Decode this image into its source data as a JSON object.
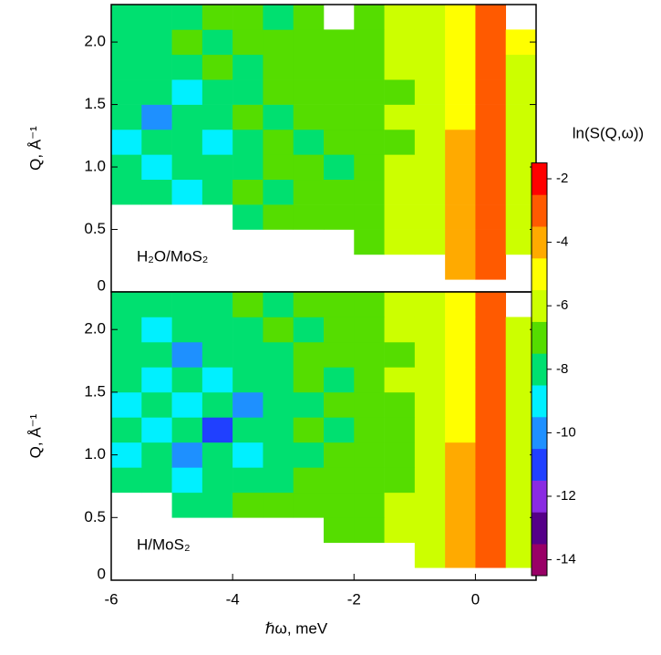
{
  "chart_data": [
    {
      "type": "heatmap",
      "annotation": "H₂O/MoS₂",
      "ylabel": "Q, Å⁻¹",
      "xlim": [
        -6,
        1
      ],
      "ylim": [
        0,
        2.3
      ],
      "yticks": [
        0,
        0.5,
        {
          "value": 1,
          "label": "1.0"
        },
        1.5,
        {
          "value": 2,
          "label": "2.0"
        }
      ],
      "x_edges": [
        -6,
        -5.5,
        -5,
        -4.5,
        -4,
        -3.5,
        -3,
        -2.5,
        -2,
        -1.5,
        -1,
        -0.5,
        0,
        0.5,
        1
      ],
      "y_edges": [
        0.1,
        0.3,
        0.5,
        0.7,
        0.9,
        1.1,
        1.3,
        1.5,
        1.7,
        1.9,
        2.1,
        2.3
      ],
      "z": [
        [
          null,
          null,
          null,
          null,
          null,
          null,
          null,
          null,
          null,
          null,
          null,
          -4,
          -3,
          null
        ],
        [
          null,
          null,
          null,
          null,
          null,
          null,
          null,
          null,
          -7,
          -6,
          -6,
          -4,
          -3,
          -6
        ],
        [
          null,
          null,
          null,
          null,
          -8,
          -7,
          -7,
          -7,
          -7,
          -6,
          -6,
          -4,
          -3,
          -6
        ],
        [
          -8,
          -8,
          -9,
          -8,
          -7,
          -8,
          -7,
          -7,
          -7,
          -6,
          -6,
          -4,
          -3,
          -6
        ],
        [
          -8,
          -9,
          -8,
          -8,
          -8,
          -7,
          -7,
          -8,
          -7,
          -6,
          -6,
          -4,
          -3,
          -6
        ],
        [
          -9,
          -8,
          -8,
          -9,
          -8,
          -7,
          -8,
          -7,
          -7,
          -7,
          -6,
          -4,
          -3,
          -6
        ],
        [
          -8,
          -10,
          -8,
          -8,
          -7,
          -8,
          -7,
          -7,
          -7,
          -6,
          -6,
          -5,
          -3,
          -6
        ],
        [
          -8,
          -8,
          -9,
          -8,
          -8,
          -7,
          -7,
          -7,
          -7,
          -7,
          -6,
          -5,
          -3,
          -6
        ],
        [
          -8,
          -8,
          -8,
          -7,
          -8,
          -7,
          -7,
          -7,
          -7,
          -6,
          -6,
          -5,
          -3,
          -6
        ],
        [
          -8,
          -8,
          -7,
          -8,
          -7,
          -7,
          -7,
          -7,
          -7,
          -6,
          -6,
          -5,
          -3,
          -5
        ],
        [
          -8,
          -8,
          -8,
          -7,
          -7,
          -8,
          -7,
          null,
          -7,
          -6,
          -6,
          -5,
          -3,
          null
        ]
      ]
    },
    {
      "type": "heatmap",
      "annotation": "H/MoS₂",
      "ylabel": "Q, Å⁻¹",
      "xlabel": "ℏω, meV",
      "xlim": [
        -6,
        1
      ],
      "ylim": [
        0,
        2.3
      ],
      "xticks": [
        -6,
        -4,
        -2,
        0
      ],
      "yticks": [
        0,
        0.5,
        {
          "value": 1,
          "label": "1.0"
        },
        1.5,
        {
          "value": 2,
          "label": "2.0"
        }
      ],
      "x_edges": [
        -6,
        -5.5,
        -5,
        -4.5,
        -4,
        -3.5,
        -3,
        -2.5,
        -2,
        -1.5,
        -1,
        -0.5,
        0,
        0.5,
        1
      ],
      "y_edges": [
        0.1,
        0.3,
        0.5,
        0.7,
        0.9,
        1.1,
        1.3,
        1.5,
        1.7,
        1.9,
        2.1,
        2.3
      ],
      "z": [
        [
          null,
          null,
          null,
          null,
          null,
          null,
          null,
          null,
          null,
          null,
          -6,
          -4,
          -3,
          -6
        ],
        [
          null,
          null,
          null,
          null,
          null,
          null,
          null,
          -7,
          -7,
          -6,
          -6,
          -4,
          -3,
          -6
        ],
        [
          null,
          null,
          -8,
          -8,
          -7,
          -7,
          -7,
          -7,
          -7,
          -6,
          -6,
          -4,
          -3,
          -6
        ],
        [
          -8,
          -8,
          -9,
          -8,
          -8,
          -8,
          -7,
          -7,
          -7,
          -7,
          -6,
          -4,
          -3,
          -6
        ],
        [
          -9,
          -8,
          -10,
          -8,
          -9,
          -8,
          -8,
          -7,
          -7,
          -7,
          -6,
          -4,
          -3,
          -6
        ],
        [
          -8,
          -9,
          -8,
          -11,
          -8,
          -8,
          -7,
          -8,
          -7,
          -7,
          -6,
          -5,
          -3,
          -6
        ],
        [
          -9,
          -8,
          -9,
          -8,
          -10,
          -8,
          -8,
          -7,
          -7,
          -7,
          -6,
          -5,
          -3,
          -6
        ],
        [
          -8,
          -9,
          -8,
          -9,
          -8,
          -8,
          -7,
          -8,
          -7,
          -6,
          -6,
          -5,
          -3,
          -6
        ],
        [
          -8,
          -8,
          -10,
          -8,
          -8,
          -8,
          -7,
          -7,
          -7,
          -7,
          -6,
          -5,
          -3,
          -6
        ],
        [
          -8,
          -9,
          -8,
          -8,
          -8,
          -7,
          -8,
          -7,
          -7,
          -6,
          -6,
          -5,
          -3,
          -6
        ],
        [
          -8,
          -8,
          -8,
          -8,
          -7,
          -8,
          -7,
          -7,
          -7,
          -6,
          -6,
          -5,
          -3,
          null
        ]
      ]
    }
  ],
  "colorbar": {
    "label": "ln(S(Q,ω))",
    "zlim": [
      -14.5,
      -1.5
    ],
    "zticks": [
      -2,
      -4,
      -6,
      -8,
      -10,
      -12,
      -14
    ],
    "colors": [
      "#990066",
      "#550088",
      "#8a2be2",
      "#2040ff",
      "#1e90ff",
      "#00f0ff",
      "#00e070",
      "#55dd00",
      "#ccff00",
      "#ffff00",
      "#ffaa00",
      "#ff5a00",
      "#ff0000"
    ]
  }
}
